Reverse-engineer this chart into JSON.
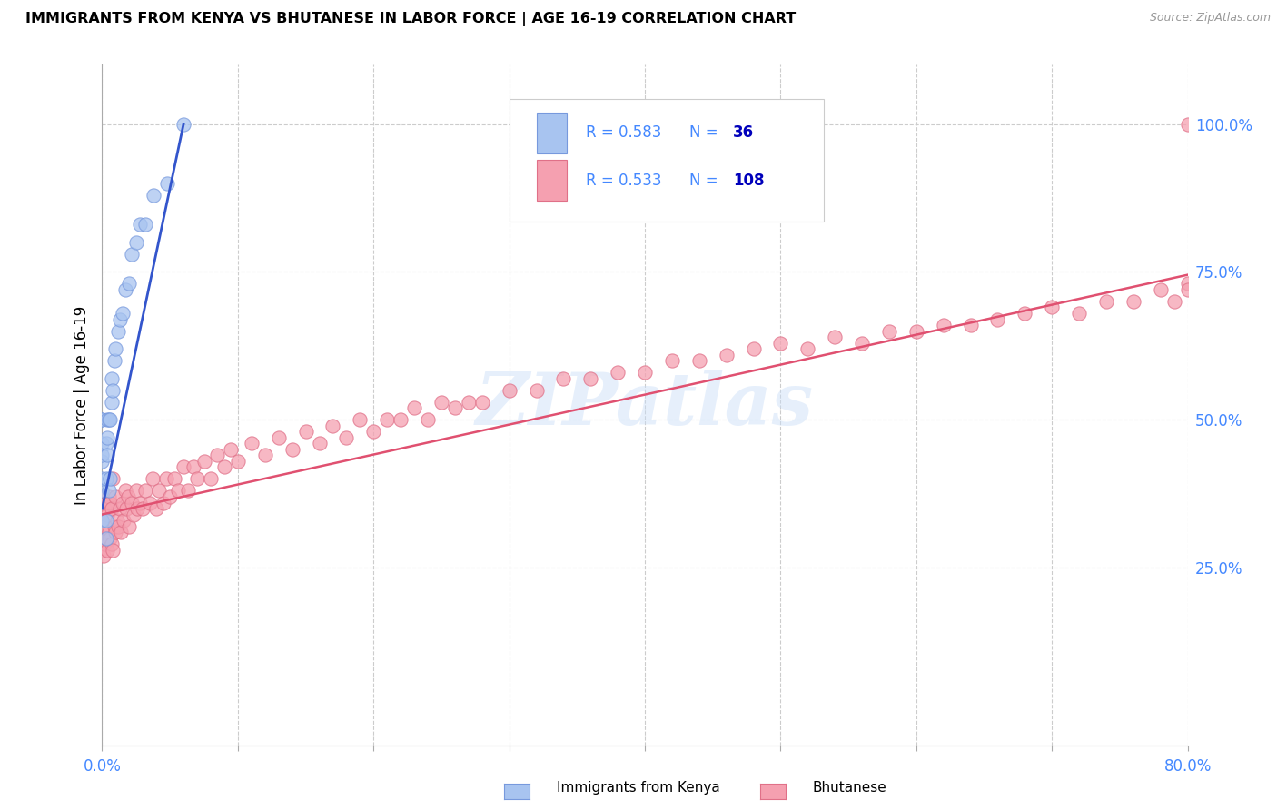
{
  "title": "IMMIGRANTS FROM KENYA VS BHUTANESE IN LABOR FORCE | AGE 16-19 CORRELATION CHART",
  "source": "Source: ZipAtlas.com",
  "ylabel": "In Labor Force | Age 16-19",
  "xlim": [
    0.0,
    0.8
  ],
  "ylim": [
    -0.05,
    1.1
  ],
  "xtick_positions": [
    0.0,
    0.1,
    0.2,
    0.3,
    0.4,
    0.5,
    0.6,
    0.7,
    0.8
  ],
  "xticklabels": [
    "0.0%",
    "",
    "",
    "",
    "",
    "",
    "",
    "",
    "80.0%"
  ],
  "ytick_right_vals": [
    0.25,
    0.5,
    0.75,
    1.0
  ],
  "ytick_right_labels": [
    "25.0%",
    "50.0%",
    "75.0%",
    "100.0%"
  ],
  "kenya_color": "#a8c4f0",
  "kenya_edge": "#7799dd",
  "bhutan_color": "#f5a0b0",
  "bhutan_edge": "#e07088",
  "kenya_R": 0.583,
  "kenya_N": 36,
  "bhutan_R": 0.533,
  "bhutan_N": 108,
  "kenya_line_color": "#3355cc",
  "bhutan_line_color": "#e05070",
  "watermark_text": "ZIPatlas",
  "legend_color": "#4488ff",
  "legend_N_color": "#0000bb",
  "bottom_label_kenya": "Immigrants from Kenya",
  "bottom_label_bhutan": "Bhutanese",
  "kenya_x": [
    0.0,
    0.0,
    0.0,
    0.0,
    0.0,
    0.0,
    0.0,
    0.0,
    0.003,
    0.003,
    0.003,
    0.003,
    0.004,
    0.004,
    0.004,
    0.005,
    0.005,
    0.006,
    0.006,
    0.007,
    0.007,
    0.008,
    0.009,
    0.01,
    0.012,
    0.013,
    0.015,
    0.017,
    0.02,
    0.022,
    0.025,
    0.028,
    0.032,
    0.038,
    0.048,
    0.06
  ],
  "kenya_y": [
    0.33,
    0.38,
    0.4,
    0.43,
    0.44,
    0.46,
    0.5,
    0.5,
    0.3,
    0.33,
    0.4,
    0.46,
    0.44,
    0.47,
    0.5,
    0.38,
    0.5,
    0.4,
    0.5,
    0.53,
    0.57,
    0.55,
    0.6,
    0.62,
    0.65,
    0.67,
    0.68,
    0.72,
    0.73,
    0.78,
    0.8,
    0.83,
    0.83,
    0.88,
    0.9,
    1.0
  ],
  "bhutan_x": [
    0.0,
    0.0,
    0.0,
    0.0,
    0.001,
    0.001,
    0.002,
    0.002,
    0.003,
    0.003,
    0.004,
    0.004,
    0.005,
    0.005,
    0.006,
    0.006,
    0.007,
    0.007,
    0.008,
    0.008,
    0.009,
    0.01,
    0.01,
    0.011,
    0.012,
    0.013,
    0.014,
    0.015,
    0.016,
    0.017,
    0.018,
    0.019,
    0.02,
    0.022,
    0.023,
    0.025,
    0.026,
    0.028,
    0.03,
    0.032,
    0.035,
    0.037,
    0.04,
    0.042,
    0.045,
    0.047,
    0.05,
    0.053,
    0.056,
    0.06,
    0.063,
    0.067,
    0.07,
    0.075,
    0.08,
    0.085,
    0.09,
    0.095,
    0.1,
    0.11,
    0.12,
    0.13,
    0.14,
    0.15,
    0.16,
    0.17,
    0.18,
    0.19,
    0.2,
    0.21,
    0.22,
    0.23,
    0.24,
    0.25,
    0.26,
    0.27,
    0.28,
    0.3,
    0.32,
    0.34,
    0.36,
    0.38,
    0.4,
    0.42,
    0.44,
    0.46,
    0.48,
    0.5,
    0.52,
    0.54,
    0.56,
    0.58,
    0.6,
    0.62,
    0.64,
    0.66,
    0.68,
    0.7,
    0.72,
    0.74,
    0.76,
    0.78,
    0.79,
    0.8,
    0.8,
    0.8
  ],
  "bhutan_y": [
    0.28,
    0.3,
    0.33,
    0.37,
    0.27,
    0.32,
    0.29,
    0.35,
    0.3,
    0.36,
    0.28,
    0.34,
    0.31,
    0.37,
    0.3,
    0.36,
    0.29,
    0.35,
    0.28,
    0.4,
    0.32,
    0.31,
    0.37,
    0.33,
    0.32,
    0.35,
    0.31,
    0.36,
    0.33,
    0.38,
    0.35,
    0.37,
    0.32,
    0.36,
    0.34,
    0.38,
    0.35,
    0.36,
    0.35,
    0.38,
    0.36,
    0.4,
    0.35,
    0.38,
    0.36,
    0.4,
    0.37,
    0.4,
    0.38,
    0.42,
    0.38,
    0.42,
    0.4,
    0.43,
    0.4,
    0.44,
    0.42,
    0.45,
    0.43,
    0.46,
    0.44,
    0.47,
    0.45,
    0.48,
    0.46,
    0.49,
    0.47,
    0.5,
    0.48,
    0.5,
    0.5,
    0.52,
    0.5,
    0.53,
    0.52,
    0.53,
    0.53,
    0.55,
    0.55,
    0.57,
    0.57,
    0.58,
    0.58,
    0.6,
    0.6,
    0.61,
    0.62,
    0.63,
    0.62,
    0.64,
    0.63,
    0.65,
    0.65,
    0.66,
    0.66,
    0.67,
    0.68,
    0.69,
    0.68,
    0.7,
    0.7,
    0.72,
    0.7,
    0.73,
    0.72,
    1.0
  ],
  "kenya_line_x": [
    0.0,
    0.06
  ],
  "kenya_line_y": [
    0.35,
    1.0
  ],
  "bhutan_line_x": [
    0.0,
    0.8
  ],
  "bhutan_line_y": [
    0.34,
    0.745
  ]
}
